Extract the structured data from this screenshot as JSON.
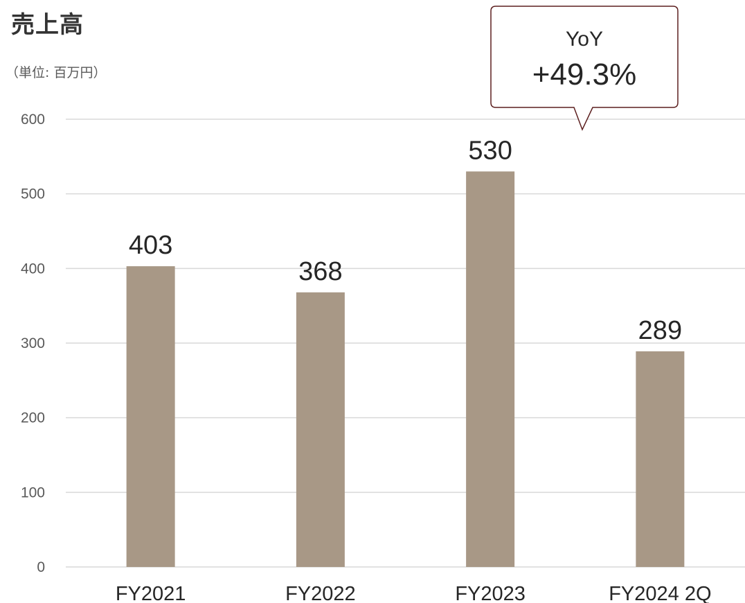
{
  "title": "売上高",
  "unit_label": "（単位: 百万円）",
  "callout": {
    "line1": "YoY",
    "line2": "+49.3%"
  },
  "colors": {
    "bar": "#a89886",
    "grid": "#d9d9d9",
    "callout_border": "#5c1f1f",
    "text": "#262626",
    "axis_text": "#595959"
  },
  "chart_data": {
    "type": "bar",
    "categories": [
      "FY2021",
      "FY2022",
      "FY2023",
      "FY2024 2Q"
    ],
    "values": [
      403,
      368,
      530,
      289
    ],
    "data_labels": [
      "403",
      "368",
      "530",
      "289"
    ],
    "title": "売上高",
    "xlabel": "",
    "ylabel": "",
    "ylim": [
      0,
      600
    ],
    "yticks": [
      0,
      100,
      200,
      300,
      400,
      500,
      600
    ],
    "grid": true
  }
}
